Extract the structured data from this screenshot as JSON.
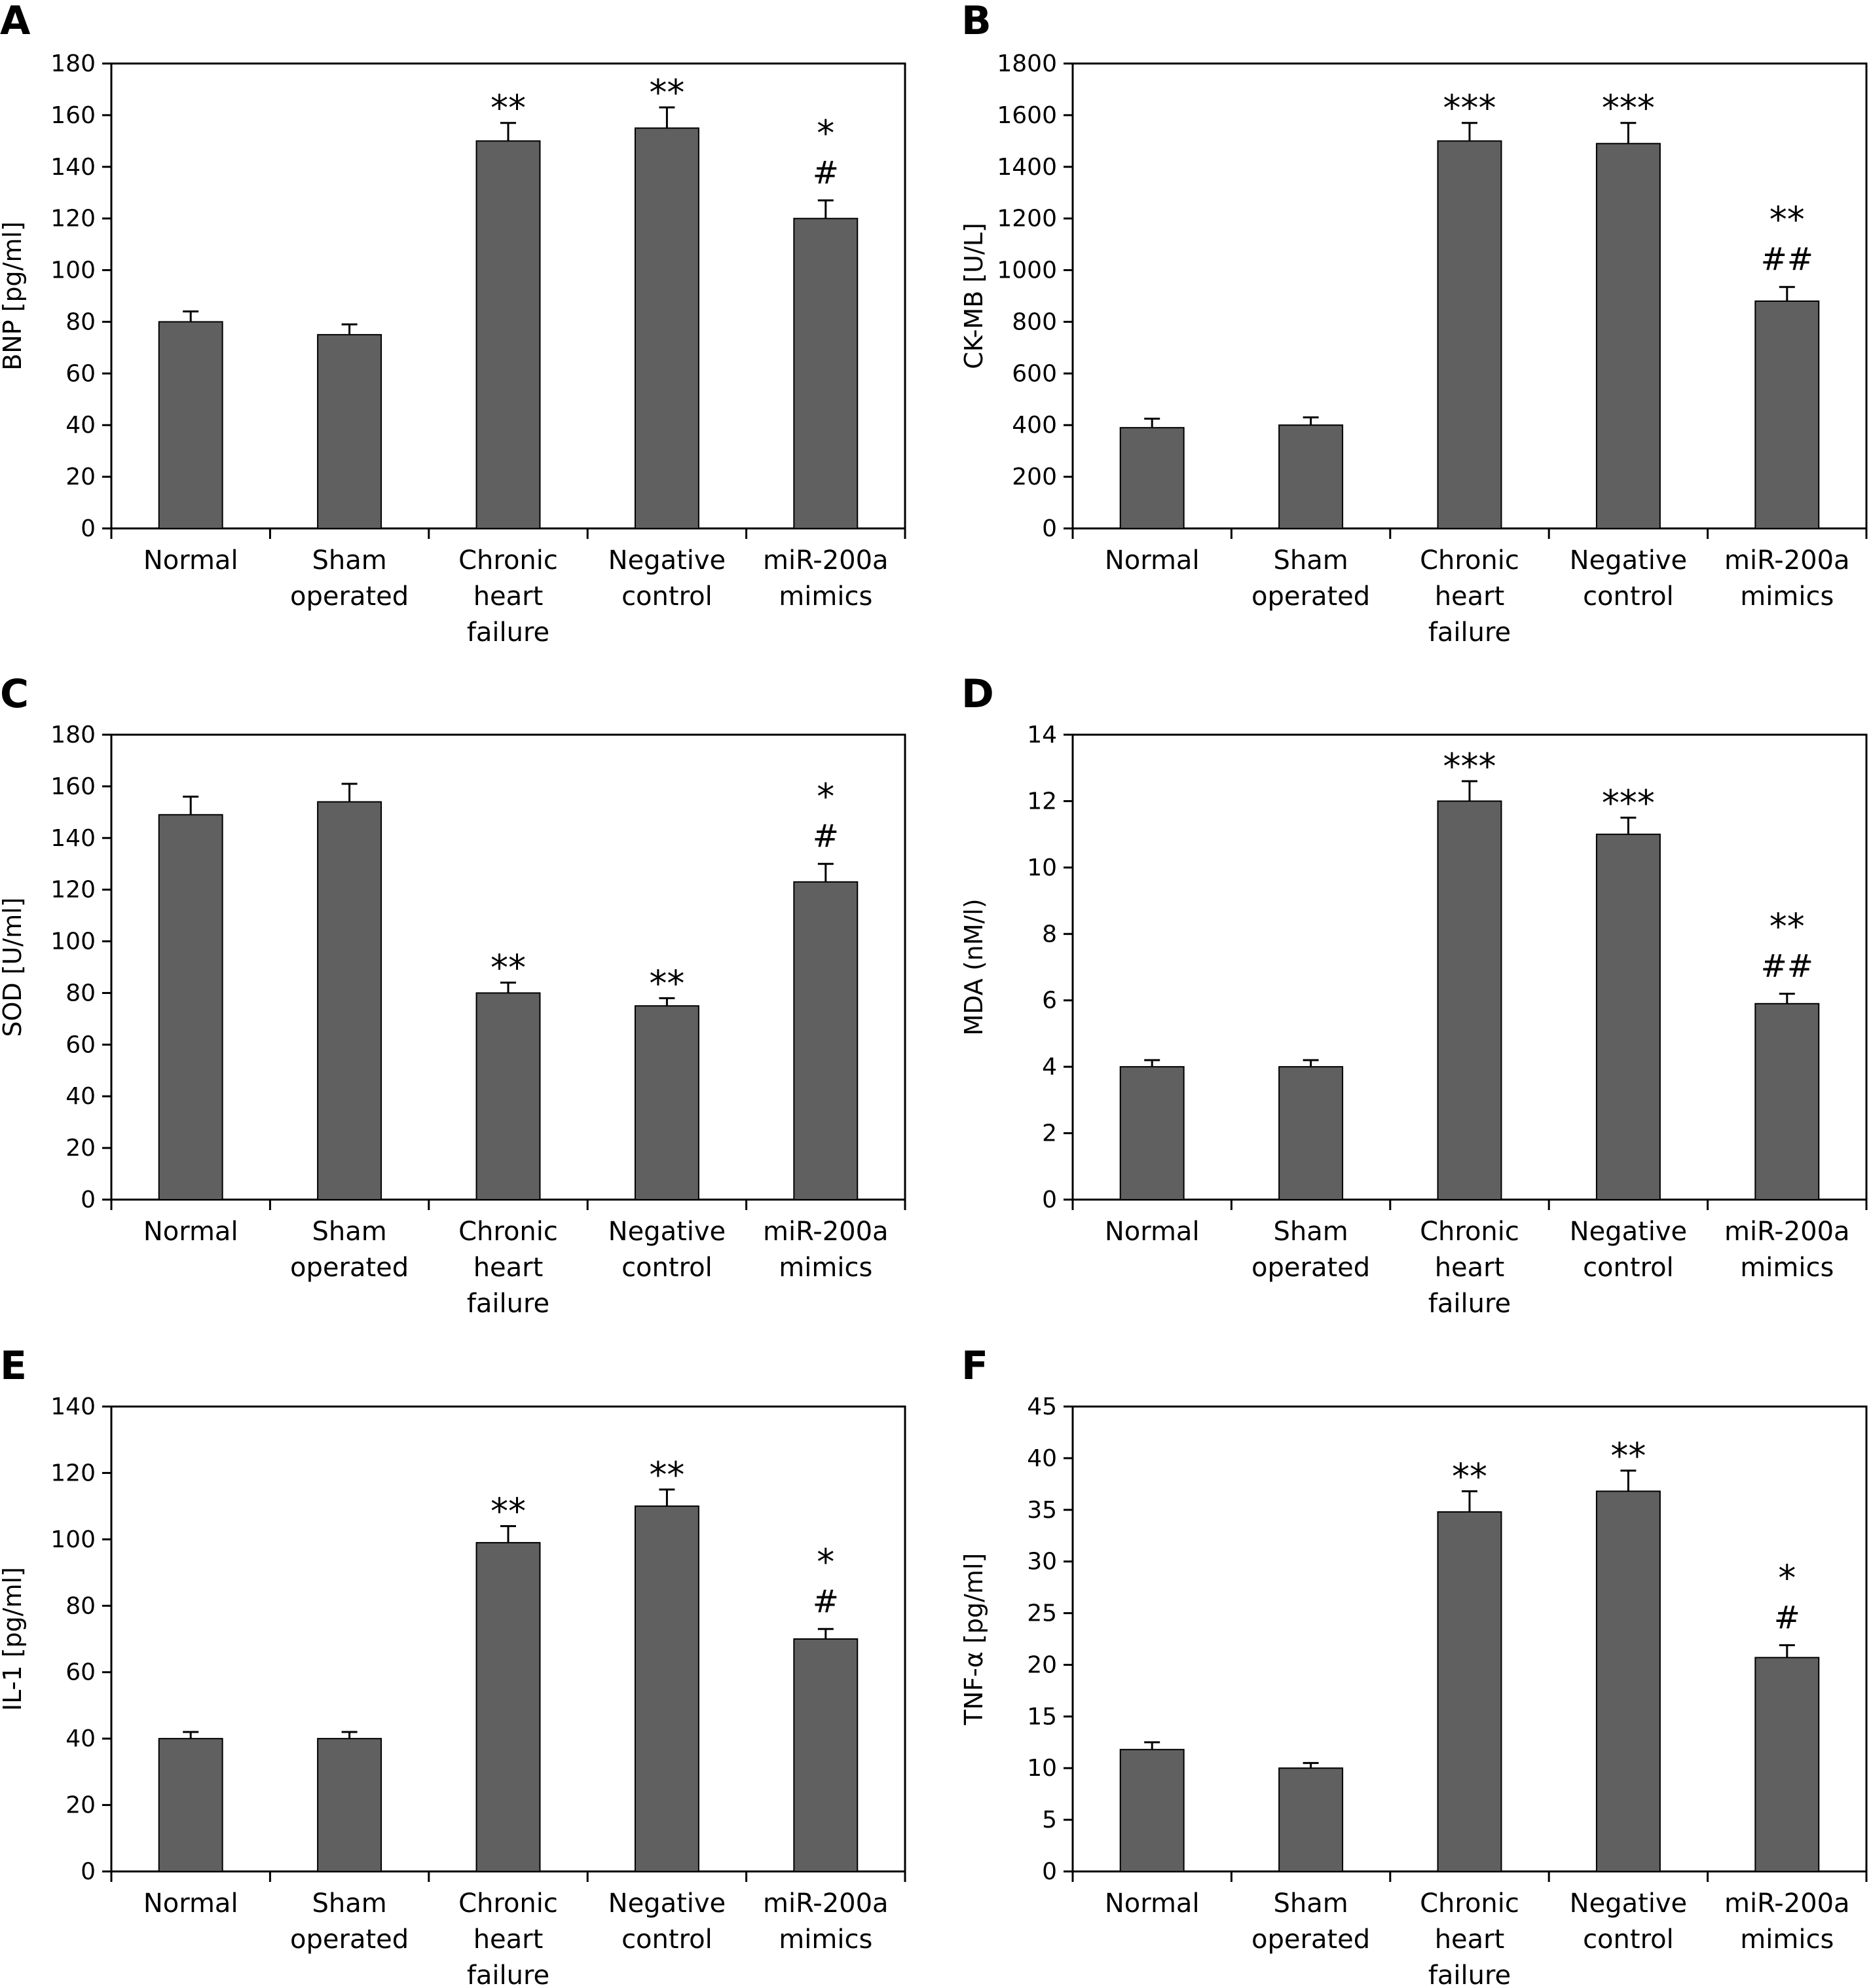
{
  "chart_data": [
    {
      "panel": "A",
      "type": "bar",
      "ylabel": "BNP [pg/ml]",
      "ylim": [
        0,
        180
      ],
      "yticks": [
        0,
        20,
        40,
        60,
        80,
        100,
        120,
        140,
        160,
        180
      ],
      "categories": [
        [
          "Normal"
        ],
        [
          "Sham",
          "operated"
        ],
        [
          "Chronic",
          "heart",
          "failure"
        ],
        [
          "Negative",
          "control"
        ],
        [
          "miR-200a",
          "mimics"
        ]
      ],
      "values": [
        80,
        75,
        150,
        155,
        120
      ],
      "errors": [
        4,
        4,
        7,
        8,
        7
      ],
      "annotations": [
        [],
        [],
        [
          "**"
        ],
        [
          "**"
        ],
        [
          "*",
          "#"
        ]
      ]
    },
    {
      "panel": "B",
      "type": "bar",
      "ylabel": "CK-MB [U/L]",
      "ylim": [
        0,
        1800
      ],
      "yticks": [
        0,
        200,
        400,
        600,
        800,
        1000,
        1200,
        1400,
        1600,
        1800
      ],
      "categories": [
        [
          "Normal"
        ],
        [
          "Sham",
          "operated"
        ],
        [
          "Chronic",
          "heart",
          "failure"
        ],
        [
          "Negative",
          "control"
        ],
        [
          "miR-200a",
          "mimics"
        ]
      ],
      "values": [
        390,
        400,
        1500,
        1490,
        880
      ],
      "errors": [
        35,
        30,
        70,
        80,
        55
      ],
      "annotations": [
        [],
        [],
        [
          "***"
        ],
        [
          "***"
        ],
        [
          "**",
          "##"
        ]
      ]
    },
    {
      "panel": "C",
      "type": "bar",
      "ylabel": "SOD [U/ml]",
      "ylim": [
        0,
        180
      ],
      "yticks": [
        0,
        20,
        40,
        60,
        80,
        100,
        120,
        140,
        160,
        180
      ],
      "categories": [
        [
          "Normal"
        ],
        [
          "Sham",
          "operated"
        ],
        [
          "Chronic",
          "heart",
          "failure"
        ],
        [
          "Negative",
          "control"
        ],
        [
          "miR-200a",
          "mimics"
        ]
      ],
      "values": [
        149,
        154,
        80,
        75,
        123
      ],
      "errors": [
        7,
        7,
        4,
        3,
        7
      ],
      "annotations": [
        [],
        [],
        [
          "**"
        ],
        [
          "**"
        ],
        [
          "*",
          "#"
        ]
      ]
    },
    {
      "panel": "D",
      "type": "bar",
      "ylabel": "MDA (nM/l)",
      "ylim": [
        0,
        14
      ],
      "yticks": [
        0,
        2,
        4,
        6,
        8,
        10,
        12,
        14
      ],
      "categories": [
        [
          "Normal"
        ],
        [
          "Sham",
          "operated"
        ],
        [
          "Chronic",
          "heart",
          "failure"
        ],
        [
          "Negative",
          "control"
        ],
        [
          "miR-200a",
          "mimics"
        ]
      ],
      "values": [
        4,
        4,
        12,
        11,
        5.9
      ],
      "errors": [
        0.2,
        0.2,
        0.6,
        0.5,
        0.3
      ],
      "annotations": [
        [],
        [],
        [
          "***"
        ],
        [
          "***"
        ],
        [
          "**",
          "##"
        ]
      ]
    },
    {
      "panel": "E",
      "type": "bar",
      "ylabel": "IL-1 [pg/ml]",
      "ylim": [
        0,
        140
      ],
      "yticks": [
        0,
        20,
        40,
        60,
        80,
        100,
        120,
        140
      ],
      "categories": [
        [
          "Normal"
        ],
        [
          "Sham",
          "operated"
        ],
        [
          "Chronic",
          "heart",
          "failure"
        ],
        [
          "Negative",
          "control"
        ],
        [
          "miR-200a",
          "mimics"
        ]
      ],
      "values": [
        40,
        40,
        99,
        110,
        70
      ],
      "errors": [
        2,
        2,
        5,
        5,
        3
      ],
      "annotations": [
        [],
        [],
        [
          "**"
        ],
        [
          "**"
        ],
        [
          "*",
          "#"
        ]
      ]
    },
    {
      "panel": "F",
      "type": "bar",
      "ylabel": "TNF-α [pg/ml]",
      "ylim": [
        0,
        45
      ],
      "yticks": [
        0,
        5,
        10,
        15,
        20,
        25,
        30,
        35,
        40,
        45
      ],
      "categories": [
        [
          "Normal"
        ],
        [
          "Sham",
          "operated"
        ],
        [
          "Chronic",
          "heart",
          "failure"
        ],
        [
          "Negative",
          "control"
        ],
        [
          "miR-200a",
          "mimics"
        ]
      ],
      "values": [
        11.8,
        10,
        34.8,
        36.8,
        20.7
      ],
      "errors": [
        0.7,
        0.5,
        2,
        2,
        1.2
      ],
      "annotations": [
        [],
        [],
        [
          "**"
        ],
        [
          "**"
        ],
        [
          "*",
          "#"
        ]
      ]
    }
  ],
  "colors": {
    "bar": "#606060",
    "axis": "#000000",
    "text": "#000000"
  }
}
